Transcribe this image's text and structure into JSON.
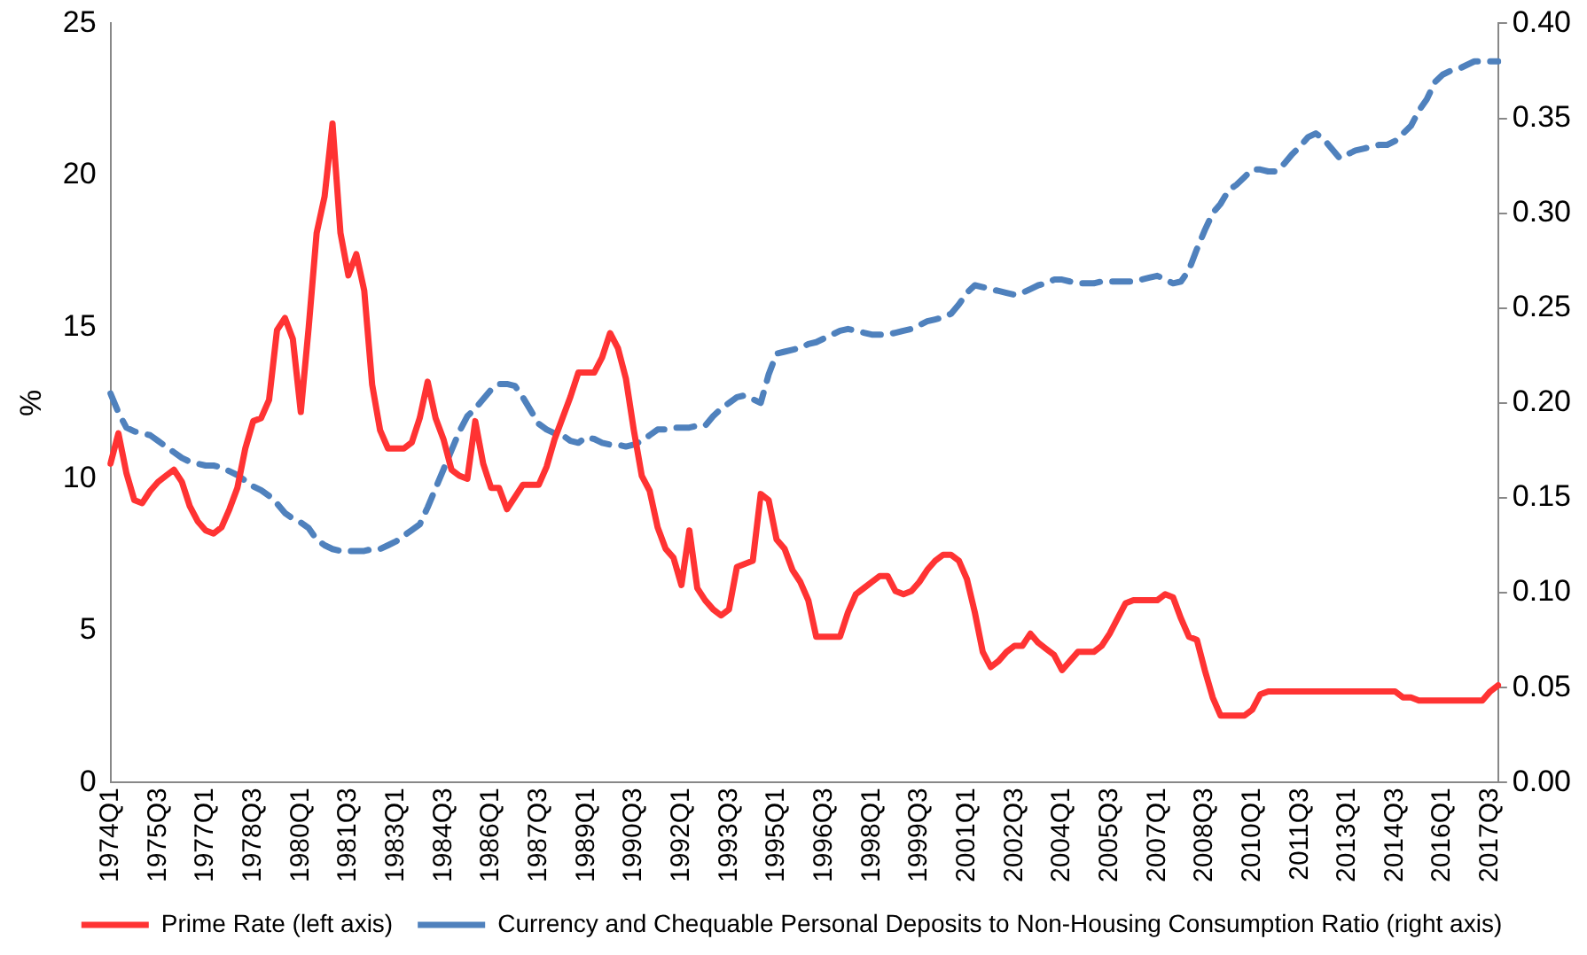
{
  "chart_data": {
    "type": "line",
    "ylabel": "%",
    "categories": [
      "1974Q1",
      null,
      null,
      null,
      null,
      null,
      "1975Q3",
      null,
      null,
      null,
      null,
      null,
      "1977Q1",
      null,
      null,
      null,
      null,
      null,
      "1978Q3",
      null,
      null,
      null,
      null,
      null,
      "1980Q1",
      null,
      null,
      null,
      null,
      null,
      "1981Q3",
      null,
      null,
      null,
      null,
      null,
      "1983Q1",
      null,
      null,
      null,
      null,
      null,
      "1984Q3",
      null,
      null,
      null,
      null,
      null,
      "1986Q1",
      null,
      null,
      null,
      null,
      null,
      "1987Q3",
      null,
      null,
      null,
      null,
      null,
      "1989Q1",
      null,
      null,
      null,
      null,
      null,
      "1990Q3",
      null,
      null,
      null,
      null,
      null,
      "1992Q1",
      null,
      null,
      null,
      null,
      null,
      "1993Q3",
      null,
      null,
      null,
      null,
      null,
      "1995Q1",
      null,
      null,
      null,
      null,
      null,
      "1996Q3",
      null,
      null,
      null,
      null,
      null,
      "1998Q1",
      null,
      null,
      null,
      null,
      null,
      "1999Q3",
      null,
      null,
      null,
      null,
      null,
      "2001Q1",
      null,
      null,
      null,
      null,
      null,
      "2002Q3",
      null,
      null,
      null,
      null,
      null,
      "2004Q1",
      null,
      null,
      null,
      null,
      null,
      "2005Q3",
      null,
      null,
      null,
      null,
      null,
      "2007Q1",
      null,
      null,
      null,
      null,
      null,
      "2008Q3",
      null,
      null,
      null,
      null,
      null,
      "2010Q1",
      null,
      null,
      null,
      null,
      null,
      "2011Q3",
      null,
      null,
      null,
      null,
      null,
      "2013Q1",
      null,
      null,
      null,
      null,
      null,
      "2014Q3",
      null,
      null,
      null,
      null,
      null,
      "2016Q1",
      null,
      null,
      null,
      null,
      null,
      "2017Q3",
      null
    ],
    "series": [
      {
        "name": "Prime Rate (left axis)",
        "color": "#ff3333",
        "line_style": "solid",
        "values": [
          10.5,
          11.5,
          10.2,
          9.3,
          9.2,
          9.6,
          9.9,
          10.1,
          10.3,
          9.9,
          9.1,
          8.6,
          8.3,
          8.2,
          8.4,
          9.0,
          9.7,
          11.0,
          11.9,
          12.0,
          12.6,
          14.9,
          15.3,
          14.6,
          12.2,
          15.0,
          18.1,
          19.3,
          21.7,
          18.1,
          16.7,
          17.4,
          16.2,
          13.1,
          11.6,
          11.0,
          11.0,
          11.0,
          11.2,
          12.0,
          13.2,
          12.0,
          11.3,
          10.3,
          10.1,
          10.0,
          11.9,
          10.5,
          9.7,
          9.7,
          9.0,
          9.4,
          9.8,
          9.8,
          9.8,
          10.4,
          11.3,
          12.0,
          12.7,
          13.5,
          13.5,
          13.5,
          14.0,
          14.8,
          14.3,
          13.3,
          11.6,
          10.1,
          9.6,
          8.4,
          7.7,
          7.4,
          6.5,
          8.3,
          6.4,
          6.0,
          5.7,
          5.5,
          5.7,
          7.1,
          7.2,
          7.3,
          9.5,
          9.3,
          8.0,
          7.7,
          7.0,
          6.6,
          6.0,
          4.8,
          4.8,
          4.8,
          4.8,
          5.6,
          6.2,
          6.4,
          6.6,
          6.8,
          6.8,
          6.3,
          6.2,
          6.3,
          6.6,
          7.0,
          7.3,
          7.5,
          7.5,
          7.3,
          6.7,
          5.6,
          4.3,
          3.8,
          4.0,
          4.3,
          4.5,
          4.5,
          4.9,
          4.6,
          4.4,
          4.2,
          3.7,
          4.0,
          4.3,
          4.3,
          4.3,
          4.5,
          4.9,
          5.4,
          5.9,
          6.0,
          6.0,
          6.0,
          6.0,
          6.2,
          6.1,
          5.4,
          4.8,
          4.7,
          3.7,
          2.8,
          2.2,
          2.2,
          2.2,
          2.2,
          2.4,
          2.9,
          3.0,
          3.0,
          3.0,
          3.0,
          3.0,
          3.0,
          3.0,
          3.0,
          3.0,
          3.0,
          3.0,
          3.0,
          3.0,
          3.0,
          3.0,
          3.0,
          3.0,
          2.8,
          2.8,
          2.7,
          2.7,
          2.7,
          2.7,
          2.7,
          2.7,
          2.7,
          2.7,
          2.7,
          3.0,
          3.2
        ]
      },
      {
        "name": "Currency and Chequable Personal Deposits to Non-Housing Consumption Ratio (right axis)",
        "color": "#4f81bd",
        "line_style": "dashed",
        "axis": "y2",
        "values": [
          0.205,
          0.195,
          0.187,
          0.185,
          0.184,
          0.183,
          0.18,
          0.177,
          0.174,
          0.171,
          0.169,
          0.168,
          0.167,
          0.167,
          0.166,
          0.164,
          0.162,
          0.159,
          0.156,
          0.154,
          0.151,
          0.147,
          0.142,
          0.139,
          0.137,
          0.134,
          0.128,
          0.125,
          0.123,
          0.122,
          0.122,
          0.122,
          0.122,
          0.123,
          0.123,
          0.125,
          0.127,
          0.13,
          0.133,
          0.136,
          0.145,
          0.155,
          0.165,
          0.175,
          0.185,
          0.193,
          0.197,
          0.202,
          0.207,
          0.21,
          0.21,
          0.209,
          0.203,
          0.196,
          0.189,
          0.186,
          0.184,
          0.183,
          0.18,
          0.179,
          0.182,
          0.181,
          0.179,
          0.178,
          0.178,
          0.177,
          0.178,
          0.18,
          0.183,
          0.186,
          0.186,
          0.187,
          0.187,
          0.187,
          0.188,
          0.188,
          0.193,
          0.197,
          0.2,
          0.203,
          0.204,
          0.202,
          0.2,
          0.215,
          0.226,
          0.227,
          0.228,
          0.229,
          0.231,
          0.232,
          0.234,
          0.236,
          0.238,
          0.239,
          0.238,
          0.237,
          0.236,
          0.236,
          0.236,
          0.237,
          0.238,
          0.239,
          0.241,
          0.243,
          0.244,
          0.245,
          0.247,
          0.252,
          0.258,
          0.262,
          0.261,
          0.26,
          0.259,
          0.258,
          0.257,
          0.258,
          0.26,
          0.262,
          0.263,
          0.265,
          0.265,
          0.264,
          0.263,
          0.263,
          0.263,
          0.264,
          0.264,
          0.264,
          0.264,
          0.264,
          0.265,
          0.266,
          0.267,
          0.265,
          0.263,
          0.264,
          0.27,
          0.281,
          0.291,
          0.3,
          0.305,
          0.312,
          0.315,
          0.319,
          0.323,
          0.323,
          0.322,
          0.322,
          0.326,
          0.331,
          0.335,
          0.34,
          0.342,
          0.339,
          0.334,
          0.329,
          0.331,
          0.333,
          0.334,
          0.335,
          0.336,
          0.336,
          0.338,
          0.342,
          0.346,
          0.354,
          0.36,
          0.369,
          0.373,
          0.375,
          0.376,
          0.378,
          0.38,
          0.38,
          0.38,
          0.38
        ]
      }
    ],
    "ylim": [
      0,
      25
    ],
    "yticks": [
      0,
      5,
      10,
      15,
      20,
      25
    ],
    "y2lim": [
      0,
      0.4
    ],
    "y2ticks": [
      {
        "value": 0,
        "label": "0.00"
      },
      {
        "value": 0.05,
        "label": "0.05"
      },
      {
        "value": 0.1,
        "label": "0.10"
      },
      {
        "value": 0.15,
        "label": "0.15"
      },
      {
        "value": 0.2,
        "label": "0.20"
      },
      {
        "value": 0.25,
        "label": "0.25"
      },
      {
        "value": 0.3,
        "label": "0.30"
      },
      {
        "value": 0.35,
        "label": "0.35"
      },
      {
        "value": 0.4,
        "label": "0.40"
      }
    ],
    "legend": "bottom",
    "marker": "none"
  }
}
